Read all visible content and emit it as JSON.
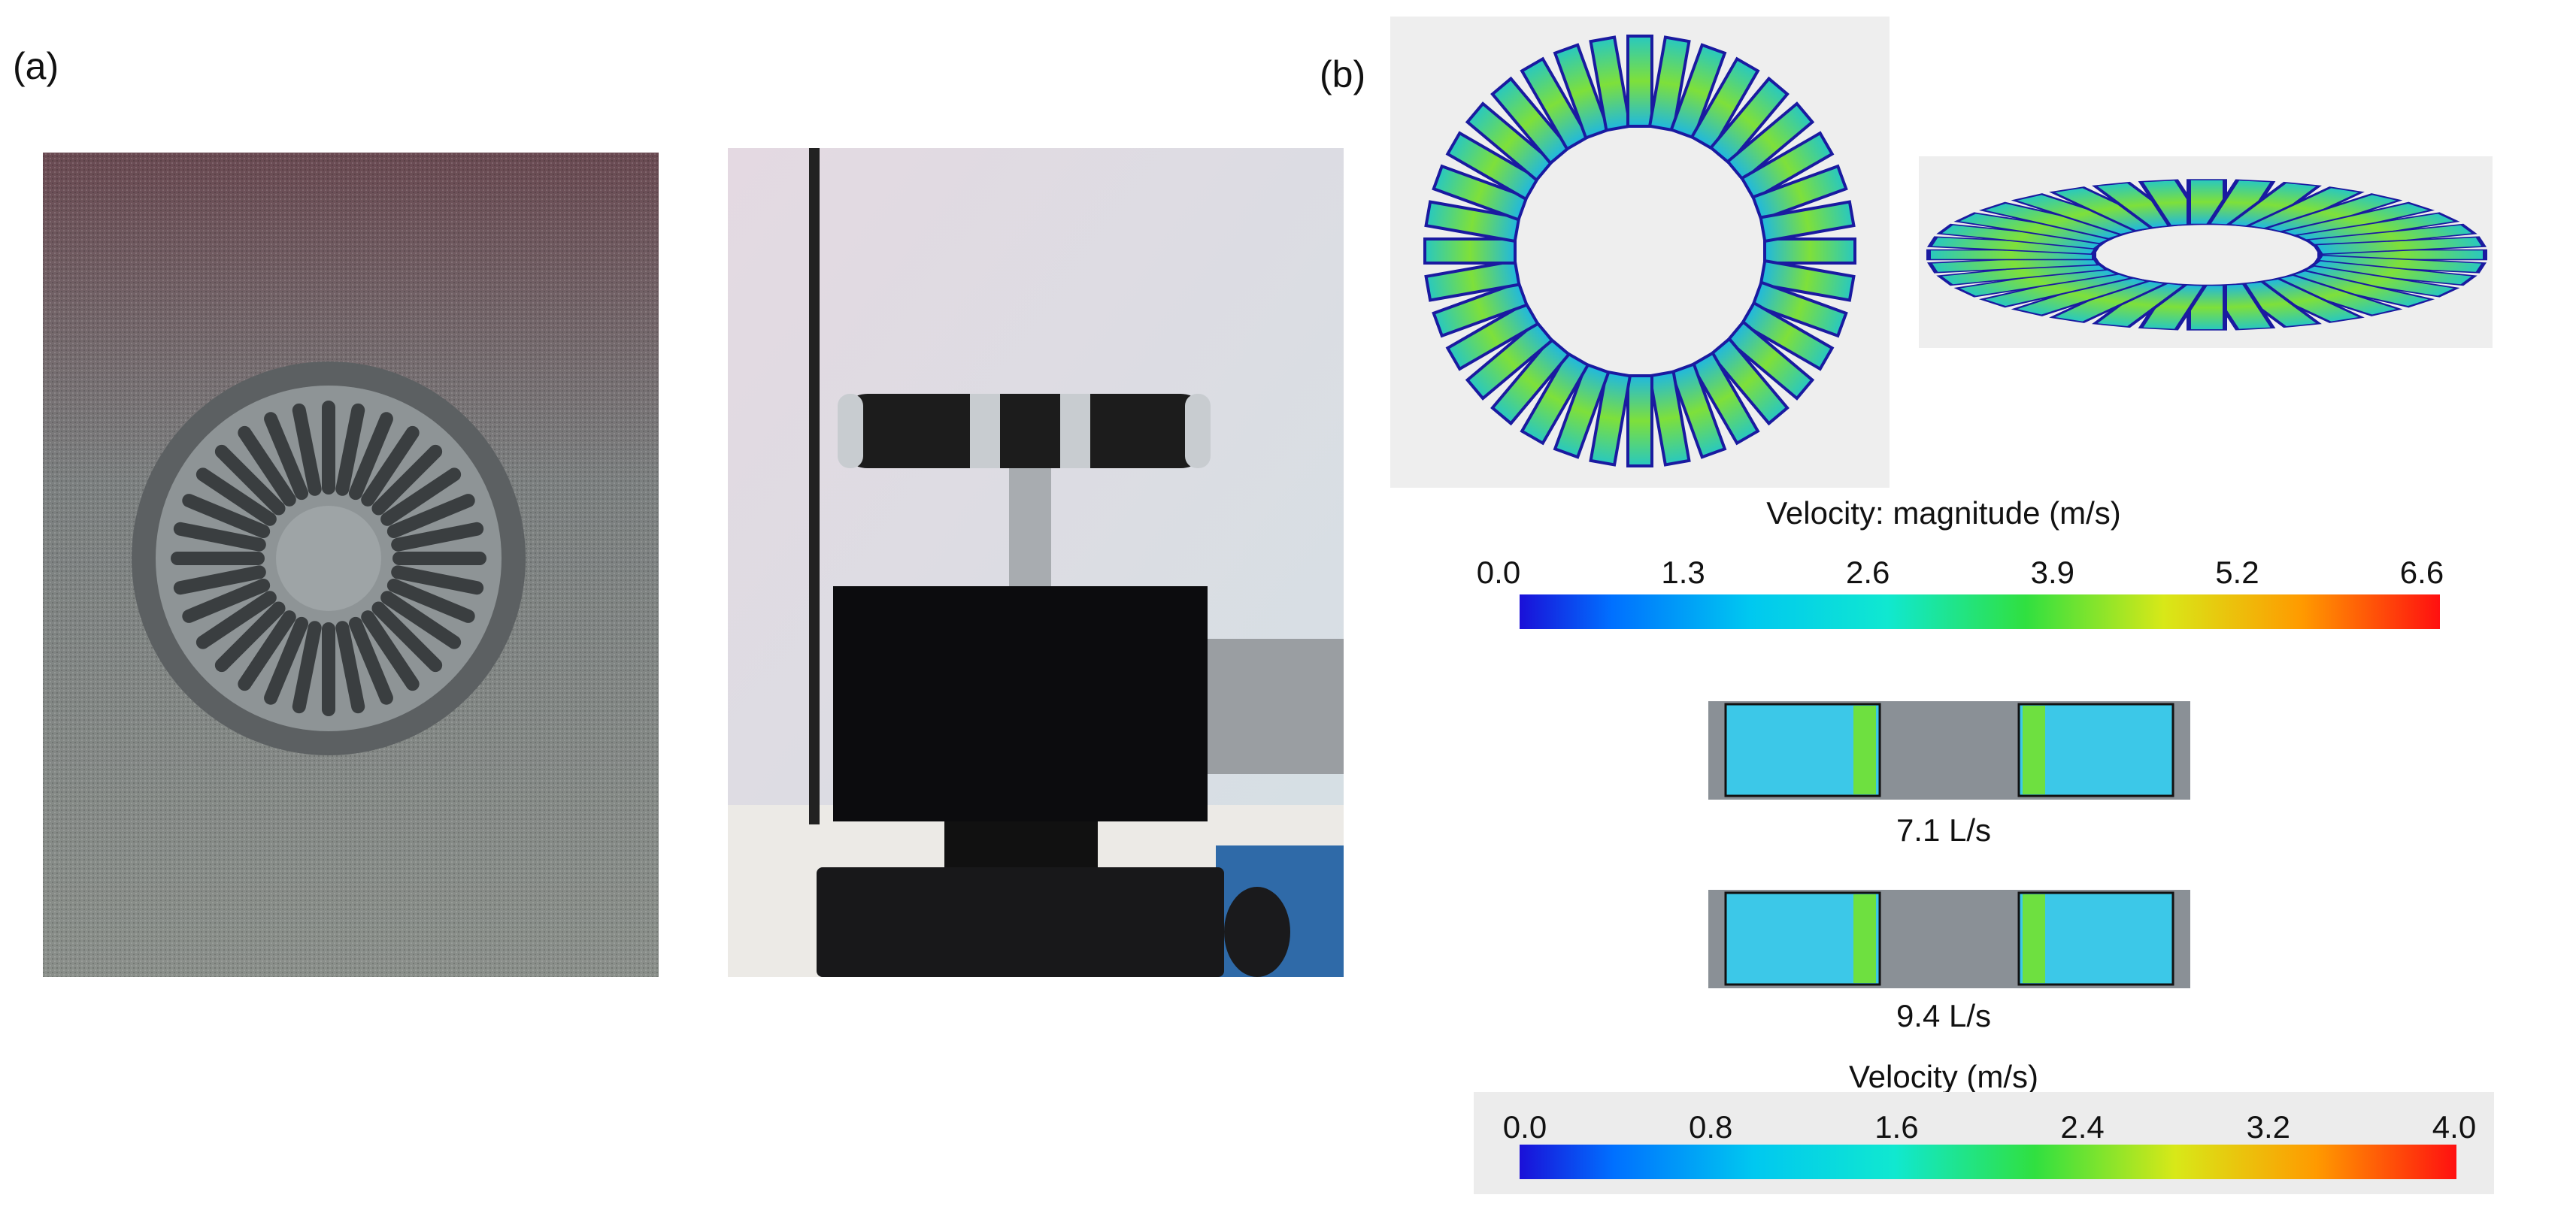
{
  "panel_a": {
    "label": "(a)"
  },
  "panel_b": {
    "label": "(b)",
    "colorbar_1": {
      "title": "Velocity: magnitude (m/s)",
      "ticks": [
        "0.0",
        "1.3",
        "2.6",
        "3.9",
        "5.2",
        "6.6"
      ]
    },
    "cases": [
      {
        "label": "7.1 L/s"
      },
      {
        "label": "9.4 L/s"
      }
    ],
    "colorbar_2": {
      "title": "Velocity (m/s)",
      "ticks": [
        "0.0",
        "0.8",
        "1.6",
        "2.4",
        "3.2",
        "4.0"
      ]
    }
  }
}
